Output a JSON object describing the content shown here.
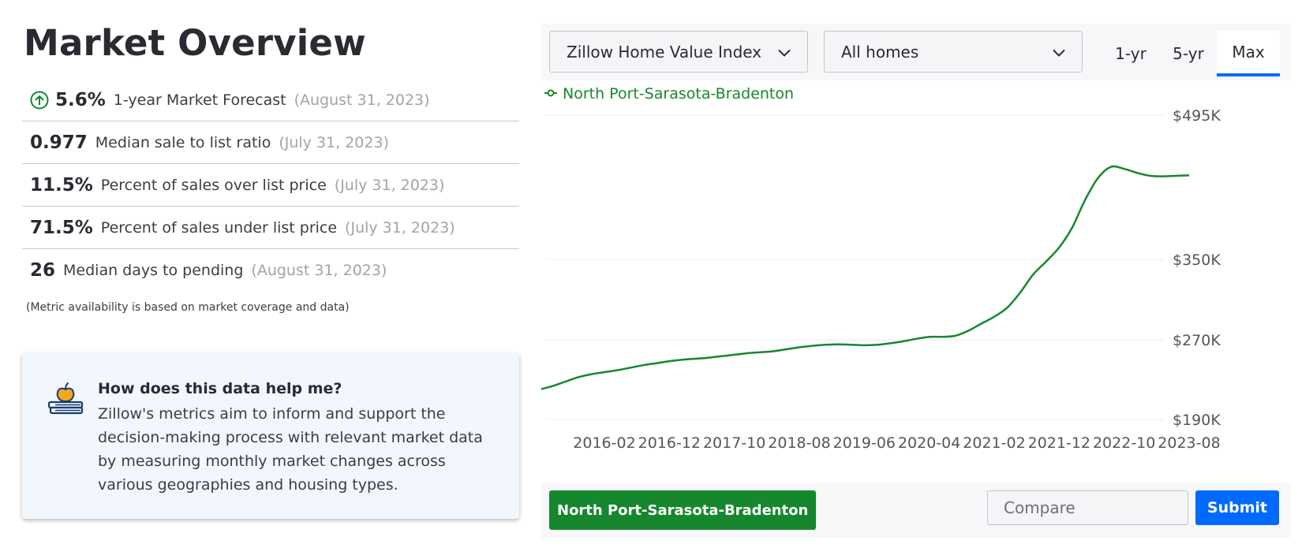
{
  "page": {
    "title": "Market Overview"
  },
  "metrics": [
    {
      "value": "5.6%",
      "label": "1-year Market Forecast",
      "date": "(August 31, 2023)",
      "icon": "arrow-up-circle-icon"
    },
    {
      "value": "0.977",
      "label": "Median sale to list ratio",
      "date": "(July 31, 2023)"
    },
    {
      "value": "11.5%",
      "label": "Percent of sales over list price",
      "date": "(July 31, 2023)"
    },
    {
      "value": "71.5%",
      "label": "Percent of sales under list price",
      "date": "(July 31, 2023)"
    },
    {
      "value": "26",
      "label": "Median days to pending",
      "date": "(August 31, 2023)"
    }
  ],
  "note": "(Metric availability is based on market coverage and data)",
  "help": {
    "icon": "apple-on-books-icon",
    "title": "How does this data help me?",
    "text": "Zillow's metrics aim to inform and support the decision-making process with relevant market data by measuring monthly market changes across various geographies and housing types."
  },
  "controls": {
    "metric_select": "Zillow Home Value Index",
    "home_type_select": "All homes",
    "ranges": [
      "1-yr",
      "5-yr",
      "Max"
    ],
    "active_range": "Max"
  },
  "colors": {
    "series": "#16872e",
    "accent": "#006aff"
  },
  "chart_data": {
    "type": "line",
    "legend_placement": "top-left",
    "series": [
      {
        "name": "North Port-Sarasota-Bradenton",
        "points": [
          [
            "2015-04",
            220000
          ],
          [
            "2015-06",
            223500
          ],
          [
            "2015-08",
            228000
          ],
          [
            "2015-10",
            232500
          ],
          [
            "2015-12",
            235500
          ],
          [
            "2016-02",
            237500
          ],
          [
            "2016-04",
            239500
          ],
          [
            "2016-06",
            242000
          ],
          [
            "2016-08",
            244500
          ],
          [
            "2016-10",
            246500
          ],
          [
            "2016-12",
            248500
          ],
          [
            "2017-02",
            250000
          ],
          [
            "2017-04",
            251000
          ],
          [
            "2017-06",
            252000
          ],
          [
            "2017-08",
            253500
          ],
          [
            "2017-10",
            255000
          ],
          [
            "2017-12",
            256500
          ],
          [
            "2018-02",
            257500
          ],
          [
            "2018-04",
            258500
          ],
          [
            "2018-06",
            260500
          ],
          [
            "2018-08",
            262500
          ],
          [
            "2018-10",
            264000
          ],
          [
            "2018-12",
            265000
          ],
          [
            "2019-02",
            265500
          ],
          [
            "2019-04",
            265000
          ],
          [
            "2019-06",
            264500
          ],
          [
            "2019-08",
            265000
          ],
          [
            "2019-10",
            266500
          ],
          [
            "2019-12",
            268500
          ],
          [
            "2020-02",
            271000
          ],
          [
            "2020-04",
            273000
          ],
          [
            "2020-06",
            273000
          ],
          [
            "2020-08",
            274000
          ],
          [
            "2020-10",
            279000
          ],
          [
            "2020-12",
            286000
          ],
          [
            "2021-02",
            293000
          ],
          [
            "2021-04",
            302000
          ],
          [
            "2021-06",
            317000
          ],
          [
            "2021-08",
            335000
          ],
          [
            "2021-10",
            348000
          ],
          [
            "2021-12",
            362000
          ],
          [
            "2022-02",
            382000
          ],
          [
            "2022-04",
            410000
          ],
          [
            "2022-06",
            432000
          ],
          [
            "2022-08",
            443000
          ],
          [
            "2022-10",
            441000
          ],
          [
            "2022-12",
            437000
          ],
          [
            "2023-02",
            434000
          ],
          [
            "2023-04",
            433500
          ],
          [
            "2023-06",
            434000
          ],
          [
            "2023-08",
            434500
          ]
        ]
      }
    ],
    "x_ticks": [
      "2016-02",
      "2016-12",
      "2017-10",
      "2018-08",
      "2019-06",
      "2020-04",
      "2021-02",
      "2021-12",
      "2022-10",
      "2023-08"
    ],
    "y_ticks": [
      {
        "value": 190000,
        "label": "$190K"
      },
      {
        "value": 270000,
        "label": "$270K"
      },
      {
        "value": 350000,
        "label": "$350K"
      },
      {
        "value": 495000,
        "label": "$495K"
      }
    ],
    "y_axis_position": "right",
    "grid": "horizontal"
  },
  "bottom": {
    "region_chip": "North Port-Sarasota-Bradenton",
    "compare_placeholder": "Compare",
    "submit_label": "Submit"
  }
}
